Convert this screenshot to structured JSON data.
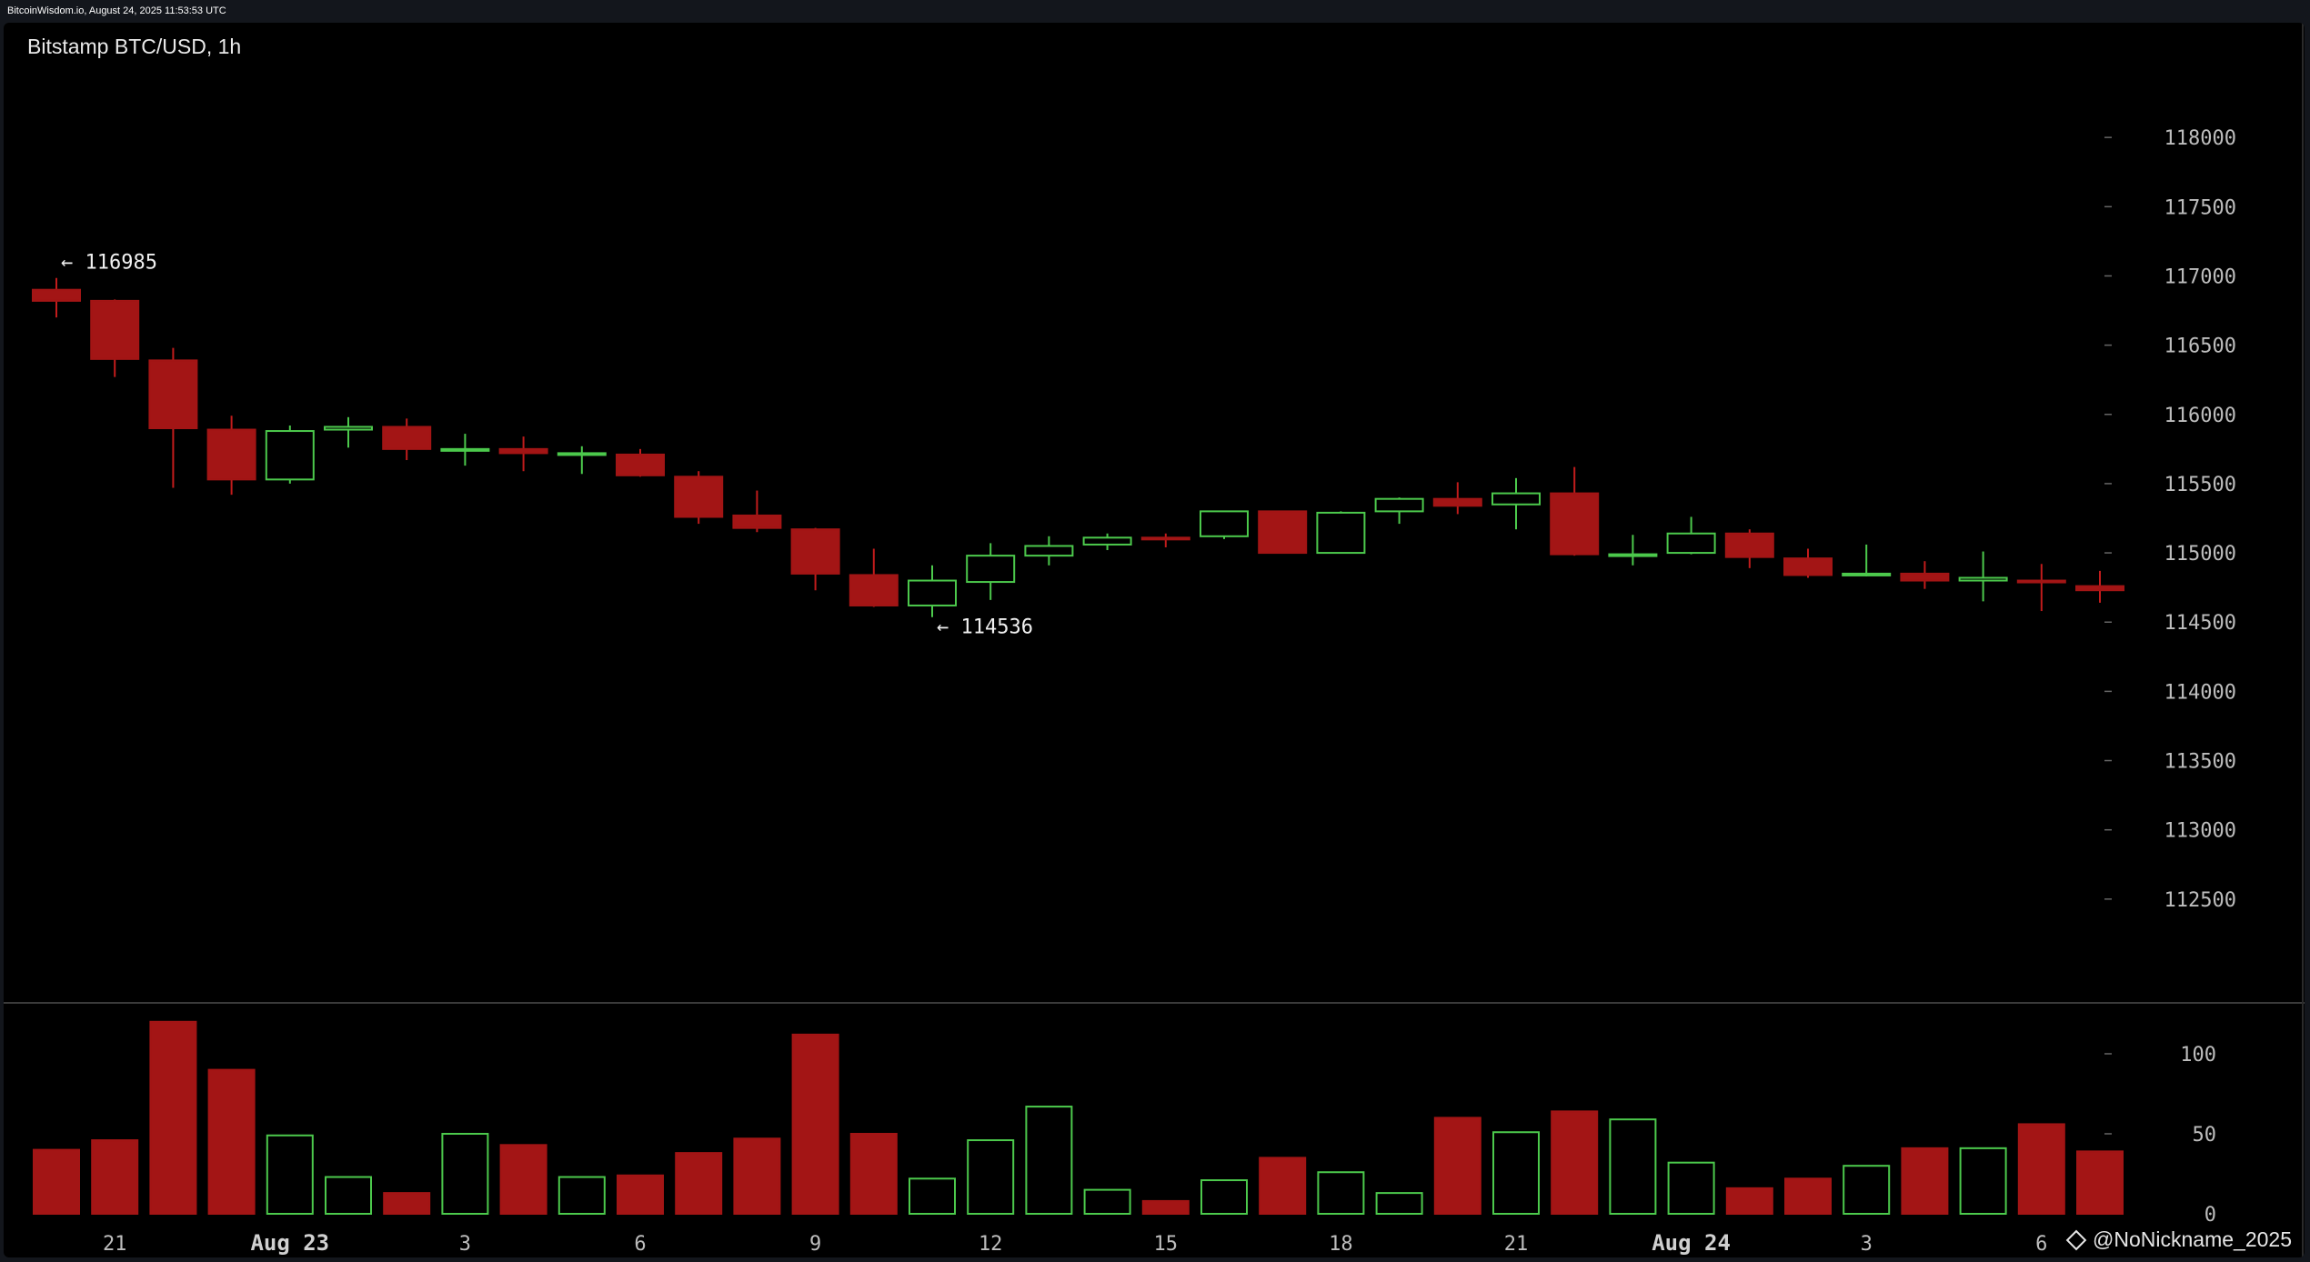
{
  "topbar": {
    "text": "BitcoinWisdom.io, August 24, 2025 11:53:53 UTC"
  },
  "chart": {
    "title": "Bitstamp BTC/USD, 1h",
    "watermark": "@NoNickname_2025"
  },
  "colors": {
    "up": "#4cc94c",
    "down": "#a31515",
    "axis_text": "#bdbdbd",
    "background": "#000000",
    "frame": "#13161c"
  },
  "chart_data": {
    "type": "candlestick",
    "title": "Bitstamp BTC/USD, 1h",
    "price_axis": {
      "ylim": [
        112000,
        118500
      ],
      "ticks": [
        112500,
        113000,
        113500,
        114000,
        114500,
        115000,
        115500,
        116000,
        116500,
        117000,
        117500,
        118000
      ]
    },
    "volume_axis": {
      "ylim": [
        0,
        125
      ],
      "ticks": [
        0,
        50,
        100
      ]
    },
    "x_labels": [
      {
        "index": 1,
        "label": "21",
        "bold": false
      },
      {
        "index": 4,
        "label": "Aug 23",
        "bold": true
      },
      {
        "index": 7,
        "label": "3",
        "bold": false
      },
      {
        "index": 10,
        "label": "6",
        "bold": false
      },
      {
        "index": 13,
        "label": "9",
        "bold": false
      },
      {
        "index": 16,
        "label": "12",
        "bold": false
      },
      {
        "index": 19,
        "label": "15",
        "bold": false
      },
      {
        "index": 22,
        "label": "18",
        "bold": false
      },
      {
        "index": 25,
        "label": "21",
        "bold": false
      },
      {
        "index": 28,
        "label": "Aug 24",
        "bold": true
      },
      {
        "index": 31,
        "label": "3",
        "bold": false
      },
      {
        "index": 34,
        "label": "6",
        "bold": false
      }
    ],
    "annotations": [
      {
        "index": 0,
        "price": 116985,
        "label": "← 116985"
      },
      {
        "index": 15,
        "price": 114536,
        "label": "← 114536"
      }
    ],
    "candles": [
      {
        "o": 116900,
        "h": 116985,
        "l": 116700,
        "c": 116820,
        "v": 40
      },
      {
        "o": 116820,
        "h": 116830,
        "l": 116270,
        "c": 116400,
        "v": 46
      },
      {
        "o": 116390,
        "h": 116480,
        "l": 115470,
        "c": 115900,
        "v": 120
      },
      {
        "o": 115890,
        "h": 115990,
        "l": 115420,
        "c": 115530,
        "v": 90
      },
      {
        "o": 115530,
        "h": 115920,
        "l": 115500,
        "c": 115880,
        "v": 49
      },
      {
        "o": 115890,
        "h": 115980,
        "l": 115760,
        "c": 115910,
        "v": 23
      },
      {
        "o": 115910,
        "h": 115970,
        "l": 115670,
        "c": 115750,
        "v": 13
      },
      {
        "o": 115740,
        "h": 115860,
        "l": 115630,
        "c": 115750,
        "v": 50
      },
      {
        "o": 115750,
        "h": 115840,
        "l": 115590,
        "c": 115720,
        "v": 43
      },
      {
        "o": 115710,
        "h": 115770,
        "l": 115570,
        "c": 115720,
        "v": 23
      },
      {
        "o": 115710,
        "h": 115750,
        "l": 115550,
        "c": 115560,
        "v": 24
      },
      {
        "o": 115550,
        "h": 115590,
        "l": 115210,
        "c": 115260,
        "v": 38
      },
      {
        "o": 115270,
        "h": 115450,
        "l": 115150,
        "c": 115180,
        "v": 47
      },
      {
        "o": 115170,
        "h": 115180,
        "l": 114730,
        "c": 114850,
        "v": 112
      },
      {
        "o": 114840,
        "h": 115030,
        "l": 114610,
        "c": 114620,
        "v": 50
      },
      {
        "o": 114620,
        "h": 114910,
        "l": 114536,
        "c": 114800,
        "v": 22
      },
      {
        "o": 114790,
        "h": 115070,
        "l": 114660,
        "c": 114980,
        "v": 46
      },
      {
        "o": 114980,
        "h": 115120,
        "l": 114910,
        "c": 115050,
        "v": 67
      },
      {
        "o": 115060,
        "h": 115140,
        "l": 115020,
        "c": 115110,
        "v": 15
      },
      {
        "o": 115110,
        "h": 115140,
        "l": 115040,
        "c": 115100,
        "v": 8
      },
      {
        "o": 115120,
        "h": 115300,
        "l": 115100,
        "c": 115300,
        "v": 21
      },
      {
        "o": 115300,
        "h": 115300,
        "l": 115000,
        "c": 115000,
        "v": 35
      },
      {
        "o": 115000,
        "h": 115300,
        "l": 115000,
        "c": 115290,
        "v": 26
      },
      {
        "o": 115300,
        "h": 115400,
        "l": 115210,
        "c": 115390,
        "v": 13
      },
      {
        "o": 115390,
        "h": 115510,
        "l": 115280,
        "c": 115340,
        "v": 60
      },
      {
        "o": 115350,
        "h": 115540,
        "l": 115170,
        "c": 115430,
        "v": 51
      },
      {
        "o": 115430,
        "h": 115620,
        "l": 114980,
        "c": 114990,
        "v": 64
      },
      {
        "o": 114980,
        "h": 115130,
        "l": 114910,
        "c": 114990,
        "v": 59
      },
      {
        "o": 115000,
        "h": 115260,
        "l": 114990,
        "c": 115140,
        "v": 32
      },
      {
        "o": 115140,
        "h": 115170,
        "l": 114890,
        "c": 114970,
        "v": 16
      },
      {
        "o": 114960,
        "h": 115030,
        "l": 114820,
        "c": 114840,
        "v": 22
      },
      {
        "o": 114840,
        "h": 115060,
        "l": 114830,
        "c": 114850,
        "v": 30
      },
      {
        "o": 114850,
        "h": 114940,
        "l": 114740,
        "c": 114800,
        "v": 41
      },
      {
        "o": 114800,
        "h": 115010,
        "l": 114650,
        "c": 114820,
        "v": 41
      },
      {
        "o": 114800,
        "h": 114920,
        "l": 114580,
        "c": 114790,
        "v": 56
      },
      {
        "o": 114760,
        "h": 114870,
        "l": 114640,
        "c": 114730,
        "v": 39
      }
    ]
  }
}
